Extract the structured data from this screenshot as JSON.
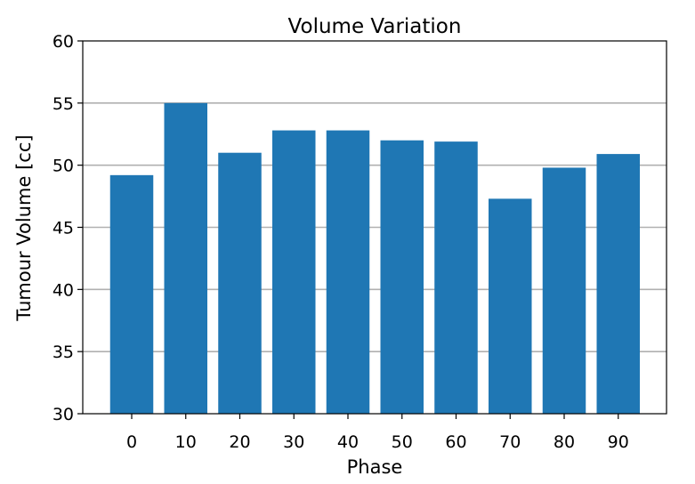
{
  "chart_data": {
    "type": "bar",
    "title": "Volume Variation",
    "xlabel": "Phase",
    "ylabel": "Tumour Volume [cc]",
    "categories": [
      "0",
      "10",
      "20",
      "30",
      "40",
      "50",
      "60",
      "70",
      "80",
      "90"
    ],
    "values": [
      49.2,
      55.0,
      51.0,
      52.8,
      52.8,
      52.0,
      51.9,
      47.3,
      49.8,
      50.9
    ],
    "ylim": [
      30,
      60
    ],
    "yticks": [
      "30",
      "35",
      "40",
      "45",
      "50",
      "55",
      "60"
    ],
    "grid": "y-major",
    "bar_color": "#1f77b4",
    "grid_color": "#b0b0b0"
  }
}
